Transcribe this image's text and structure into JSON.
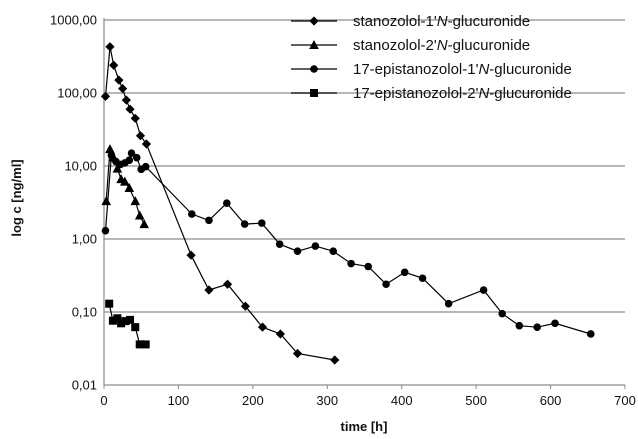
{
  "chart_data": {
    "type": "scatter",
    "xlabel": "time [h]",
    "ylabel": "log c [ng/ml]",
    "xlim": [
      0,
      700
    ],
    "ylim": [
      0.01,
      1000
    ],
    "y_scale": "log",
    "x_ticks": [
      0,
      100,
      200,
      300,
      400,
      500,
      600,
      700
    ],
    "y_ticks": [
      {
        "value": 0.01,
        "label": "0,01"
      },
      {
        "value": 0.1,
        "label": "0,10"
      },
      {
        "value": 1,
        "label": "1,00"
      },
      {
        "value": 10,
        "label": "10,00"
      },
      {
        "value": 100,
        "label": "100,00"
      },
      {
        "value": 1000,
        "label": "1000,00"
      }
    ],
    "grid": "horizontal",
    "legend_position": "top-right",
    "line_color": "#000000",
    "series": [
      {
        "name_parts": [
          "stanozolol-1'",
          "N",
          "-glucuronide"
        ],
        "marker": "diamond",
        "points": [
          [
            2,
            90
          ],
          [
            8,
            430
          ],
          [
            13,
            240
          ],
          [
            20,
            150
          ],
          [
            25,
            115
          ],
          [
            30,
            80
          ],
          [
            35,
            60
          ],
          [
            42,
            45
          ],
          [
            49,
            26
          ],
          [
            57,
            20
          ],
          [
            117,
            0.6
          ],
          [
            141,
            0.2
          ],
          [
            166,
            0.24
          ],
          [
            190,
            0.12
          ],
          [
            213,
            0.062
          ],
          [
            237,
            0.05
          ],
          [
            260,
            0.027
          ],
          [
            310,
            0.022
          ]
        ]
      },
      {
        "name_parts": [
          "stanozolol-2'",
          "N",
          "-glucuronide"
        ],
        "marker": "triangle",
        "points": [
          [
            3,
            3.3
          ],
          [
            8,
            17
          ],
          [
            13,
            13
          ],
          [
            18,
            9.2
          ],
          [
            23,
            6.6
          ],
          [
            28,
            6.1
          ],
          [
            34,
            5
          ],
          [
            42,
            3.3
          ],
          [
            48,
            2.1
          ],
          [
            54,
            1.6
          ]
        ]
      },
      {
        "name_parts": [
          "17-epistanozolol-1'",
          "N",
          "-glucuronide"
        ],
        "marker": "circle",
        "points": [
          [
            2,
            1.3
          ],
          [
            10,
            14
          ],
          [
            16,
            11.5
          ],
          [
            22,
            10.5
          ],
          [
            28,
            11
          ],
          [
            34,
            12
          ],
          [
            37,
            15
          ],
          [
            44,
            13
          ],
          [
            50,
            9
          ],
          [
            56,
            9.8
          ],
          [
            118,
            2.2
          ],
          [
            141,
            1.8
          ],
          [
            165,
            3.1
          ],
          [
            189,
            1.6
          ],
          [
            212,
            1.65
          ],
          [
            236,
            0.85
          ],
          [
            260,
            0.68
          ],
          [
            284,
            0.8
          ],
          [
            308,
            0.68
          ],
          [
            332,
            0.46
          ],
          [
            355,
            0.42
          ],
          [
            379,
            0.24
          ],
          [
            404,
            0.35
          ],
          [
            428,
            0.29
          ],
          [
            463,
            0.13
          ],
          [
            510,
            0.2
          ],
          [
            535,
            0.095
          ],
          [
            558,
            0.065
          ],
          [
            582,
            0.062
          ],
          [
            606,
            0.07
          ],
          [
            654,
            0.05
          ]
        ]
      },
      {
        "name_parts": [
          "17-epistanozolol-2'",
          "N",
          "-glucuronide"
        ],
        "marker": "square",
        "points": [
          [
            7,
            0.13
          ],
          [
            12,
            0.076
          ],
          [
            18,
            0.082
          ],
          [
            23,
            0.07
          ],
          [
            29,
            0.075
          ],
          [
            35,
            0.078
          ],
          [
            42,
            0.062
          ],
          [
            48,
            0.036
          ],
          [
            56,
            0.036
          ]
        ]
      }
    ]
  }
}
